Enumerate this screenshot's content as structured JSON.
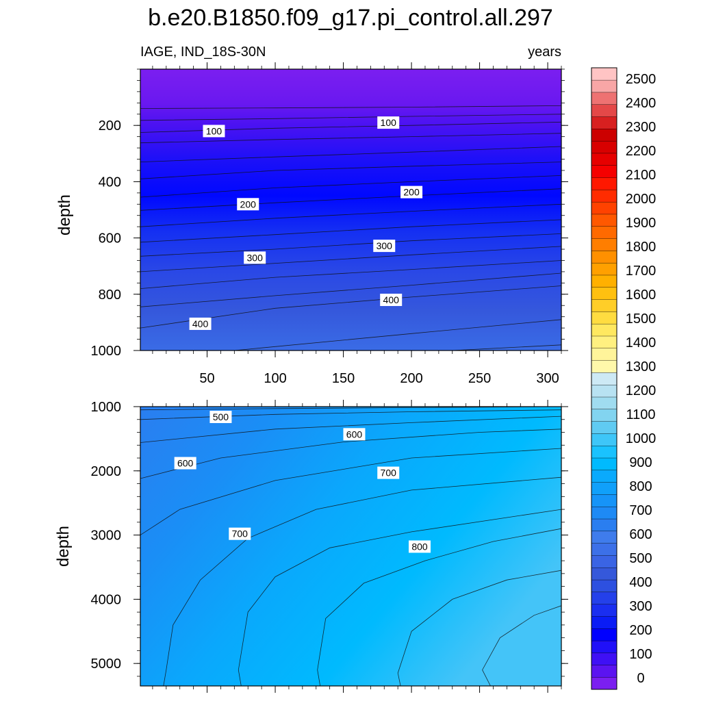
{
  "title": "b.e20.B1850.f09_g17.pi_control.all.297",
  "subtitle_left": "IAGE, IND_18S-30N",
  "subtitle_right": "years",
  "chart_data": [
    {
      "type": "heatmap",
      "panel": "upper",
      "ylabel": "depth",
      "xlim": [
        1,
        310
      ],
      "ylim": [
        1000,
        0
      ],
      "x_ticks": [
        50,
        100,
        150,
        200,
        250,
        300
      ],
      "y_ticks": [
        200,
        400,
        600,
        800,
        1000
      ],
      "y_tick_labels": [
        "200",
        "400",
        "600",
        "800",
        "1000"
      ],
      "contour_lines": [
        {
          "level": 50,
          "depth_at_x": [
            [
              1,
              140
            ],
            [
              100,
              138
            ],
            [
              200,
              135
            ],
            [
              310,
              130
            ]
          ]
        },
        {
          "level": 75,
          "depth_at_x": [
            [
              1,
              182
            ],
            [
              100,
              176
            ],
            [
              200,
              168
            ],
            [
              310,
              160
            ]
          ]
        },
        {
          "level": 100,
          "depth_at_x": [
            [
              1,
              225
            ],
            [
              100,
              210
            ],
            [
              200,
              200
            ],
            [
              310,
              188
            ]
          ]
        },
        {
          "level": 125,
          "depth_at_x": [
            [
              1,
              262
            ],
            [
              100,
              250
            ],
            [
              200,
              240
            ],
            [
              310,
              228
            ]
          ]
        },
        {
          "level": 150,
          "depth_at_x": [
            [
              1,
              330
            ],
            [
              100,
              312
            ],
            [
              200,
              295
            ],
            [
              310,
              275
            ]
          ]
        },
        {
          "level": 175,
          "depth_at_x": [
            [
              1,
              390
            ],
            [
              100,
              360
            ],
            [
              200,
              345
            ],
            [
              310,
              330
            ]
          ]
        },
        {
          "level": 200,
          "depth_at_x": [
            [
              1,
              455
            ],
            [
              100,
              422
            ],
            [
              200,
              400
            ],
            [
              310,
              378
            ]
          ]
        },
        {
          "level": 225,
          "depth_at_x": [
            [
              1,
              502
            ],
            [
              100,
              475
            ],
            [
              200,
              450
            ],
            [
              310,
              425
            ]
          ]
        },
        {
          "level": 250,
          "depth_at_x": [
            [
              1,
              560
            ],
            [
              100,
              530
            ],
            [
              200,
              505
            ],
            [
              310,
              480
            ]
          ]
        },
        {
          "level": 275,
          "depth_at_x": [
            [
              1,
              615
            ],
            [
              100,
              588
            ],
            [
              200,
              560
            ],
            [
              310,
              535
            ]
          ]
        },
        {
          "level": 300,
          "depth_at_x": [
            [
              1,
              665
            ],
            [
              100,
              640
            ],
            [
              200,
              610
            ],
            [
              310,
              585
            ]
          ]
        },
        {
          "level": 325,
          "depth_at_x": [
            [
              1,
              720
            ],
            [
              100,
              690
            ],
            [
              200,
              660
            ],
            [
              310,
              630
            ]
          ]
        },
        {
          "level": 350,
          "depth_at_x": [
            [
              1,
              780
            ],
            [
              100,
              740
            ],
            [
              200,
              712
            ],
            [
              310,
              680
            ]
          ]
        },
        {
          "level": 375,
          "depth_at_x": [
            [
              1,
              845
            ],
            [
              100,
              805
            ],
            [
              200,
              768
            ],
            [
              310,
              725
            ]
          ]
        },
        {
          "level": 400,
          "depth_at_x": [
            [
              1,
              920
            ],
            [
              100,
              850
            ],
            [
              200,
              810
            ],
            [
              310,
              770
            ]
          ]
        },
        {
          "level": 425,
          "depth_at_x": [
            [
              70,
              1000
            ],
            [
              200,
              940
            ],
            [
              310,
              890
            ]
          ]
        },
        {
          "level": 450,
          "depth_at_x": [
            [
              230,
              1000
            ],
            [
              310,
              980
            ]
          ]
        }
      ],
      "contour_labels": [
        {
          "text": "100",
          "x": 55,
          "depth": 220
        },
        {
          "text": "100",
          "x": 183,
          "depth": 190
        },
        {
          "text": "200",
          "x": 80,
          "depth": 480
        },
        {
          "text": "200",
          "x": 200,
          "depth": 437
        },
        {
          "text": "300",
          "x": 85,
          "depth": 670
        },
        {
          "text": "300",
          "x": 180,
          "depth": 628
        },
        {
          "text": "400",
          "x": 45,
          "depth": 905
        },
        {
          "text": "400",
          "x": 185,
          "depth": 820
        }
      ]
    },
    {
      "type": "heatmap",
      "panel": "lower",
      "ylabel": "depth",
      "xlim": [
        1,
        310
      ],
      "ylim": [
        5350,
        1000
      ],
      "y_ticks": [
        1000,
        2000,
        3000,
        4000,
        5000
      ],
      "y_tick_labels": [
        "1000",
        "2000",
        "3000",
        "4000",
        "5000"
      ],
      "contour_lines": [
        {
          "level": 450,
          "depth_at_x": [
            [
              1,
              1050
            ],
            [
              100,
              1030
            ],
            [
              200,
              1015
            ],
            [
              310,
              1000
            ]
          ]
        },
        {
          "level": 500,
          "depth_at_x": [
            [
              1,
              1200
            ],
            [
              100,
              1120
            ],
            [
              200,
              1080
            ],
            [
              310,
              1050
            ]
          ]
        },
        {
          "level": 550,
          "depth_at_x": [
            [
              1,
              1560
            ],
            [
              100,
              1350
            ],
            [
              200,
              1250
            ],
            [
              310,
              1150
            ]
          ]
        },
        {
          "level": 600,
          "depth_at_x": [
            [
              1,
              2120
            ],
            [
              60,
              1800
            ],
            [
              150,
              1550
            ],
            [
              250,
              1400
            ],
            [
              310,
              1350
            ]
          ]
        },
        {
          "level": 650,
          "depth_at_x": [
            [
              1,
              3000
            ],
            [
              30,
              2600
            ],
            [
              100,
              2150
            ],
            [
              200,
              1800
            ],
            [
              310,
              1650
            ]
          ]
        },
        {
          "level": 700,
          "depth_at_x": [
            [
              18,
              5350
            ],
            [
              20,
              5100
            ],
            [
              25,
              4400
            ],
            [
              45,
              3700
            ],
            [
              80,
              3050
            ],
            [
              130,
              2600
            ],
            [
              200,
              2300
            ],
            [
              310,
              2100
            ]
          ]
        },
        {
          "level": 750,
          "depth_at_x": [
            [
              75,
              5350
            ],
            [
              73,
              5100
            ],
            [
              80,
              4200
            ],
            [
              100,
              3650
            ],
            [
              140,
              3200
            ],
            [
              200,
              2950
            ],
            [
              310,
              2600
            ]
          ]
        },
        {
          "level": 800,
          "depth_at_x": [
            [
              133,
              5350
            ],
            [
              131,
              5100
            ],
            [
              137,
              4300
            ],
            [
              165,
              3750
            ],
            [
              210,
              3400
            ],
            [
              260,
              3100
            ],
            [
              310,
              2900
            ]
          ]
        },
        {
          "level": 850,
          "depth_at_x": [
            [
              192,
              5350
            ],
            [
              190,
              5150
            ],
            [
              200,
              4500
            ],
            [
              230,
              4000
            ],
            [
              270,
              3700
            ],
            [
              310,
              3550
            ]
          ]
        },
        {
          "level": 900,
          "depth_at_x": [
            [
              258,
              5350
            ],
            [
              252,
              5100
            ],
            [
              265,
              4600
            ],
            [
              290,
              4250
            ],
            [
              310,
              4100
            ]
          ]
        }
      ],
      "contour_labels": [
        {
          "text": "500",
          "x": 60,
          "depth": 1160
        },
        {
          "text": "600",
          "x": 158,
          "depth": 1430
        },
        {
          "text": "600",
          "x": 34,
          "depth": 1880
        },
        {
          "text": "700",
          "x": 183,
          "depth": 2030
        },
        {
          "text": "700",
          "x": 74,
          "depth": 2980
        },
        {
          "text": "800",
          "x": 206,
          "depth": 3180
        }
      ]
    }
  ],
  "colorbar": {
    "labels": [
      "0",
      "100",
      "200",
      "300",
      "400",
      "500",
      "600",
      "700",
      "800",
      "900",
      "1000",
      "1100",
      "1200",
      "1300",
      "1400",
      "1500",
      "1600",
      "1700",
      "1800",
      "1900",
      "2000",
      "2100",
      "2200",
      "2300",
      "2400",
      "2500"
    ],
    "colors": [
      "#7b1ff0",
      "#5b14f0",
      "#3f10f5",
      "#2010f8",
      "#0000ff",
      "#0a1cf5",
      "#1a2ef0",
      "#2440ea",
      "#2d50e0",
      "#3558da",
      "#3a64e4",
      "#3c70e8",
      "#3f7cec",
      "#2a7ef0",
      "#1e8af5",
      "#1694f8",
      "#10a0fa",
      "#0aaafc",
      "#00bafe",
      "#1ac2fe",
      "#3ec6f8",
      "#60cbf2",
      "#82d4f0",
      "#a0dcf0",
      "#b8e2f2",
      "#cde9f5",
      "#fff8aa",
      "#fff49a",
      "#fff080",
      "#ffe860",
      "#ffdc40",
      "#ffce28",
      "#ffc010",
      "#ffb000",
      "#ffa000",
      "#ff9000",
      "#ff7e00",
      "#ff6a00",
      "#ff5800",
      "#ff4200",
      "#ff2c00",
      "#ff1800",
      "#f50000",
      "#e60000",
      "#d80000",
      "#cc0000",
      "#d82020",
      "#e44848",
      "#ee7272",
      "#f8a6a6",
      "#ffc4c4"
    ]
  }
}
